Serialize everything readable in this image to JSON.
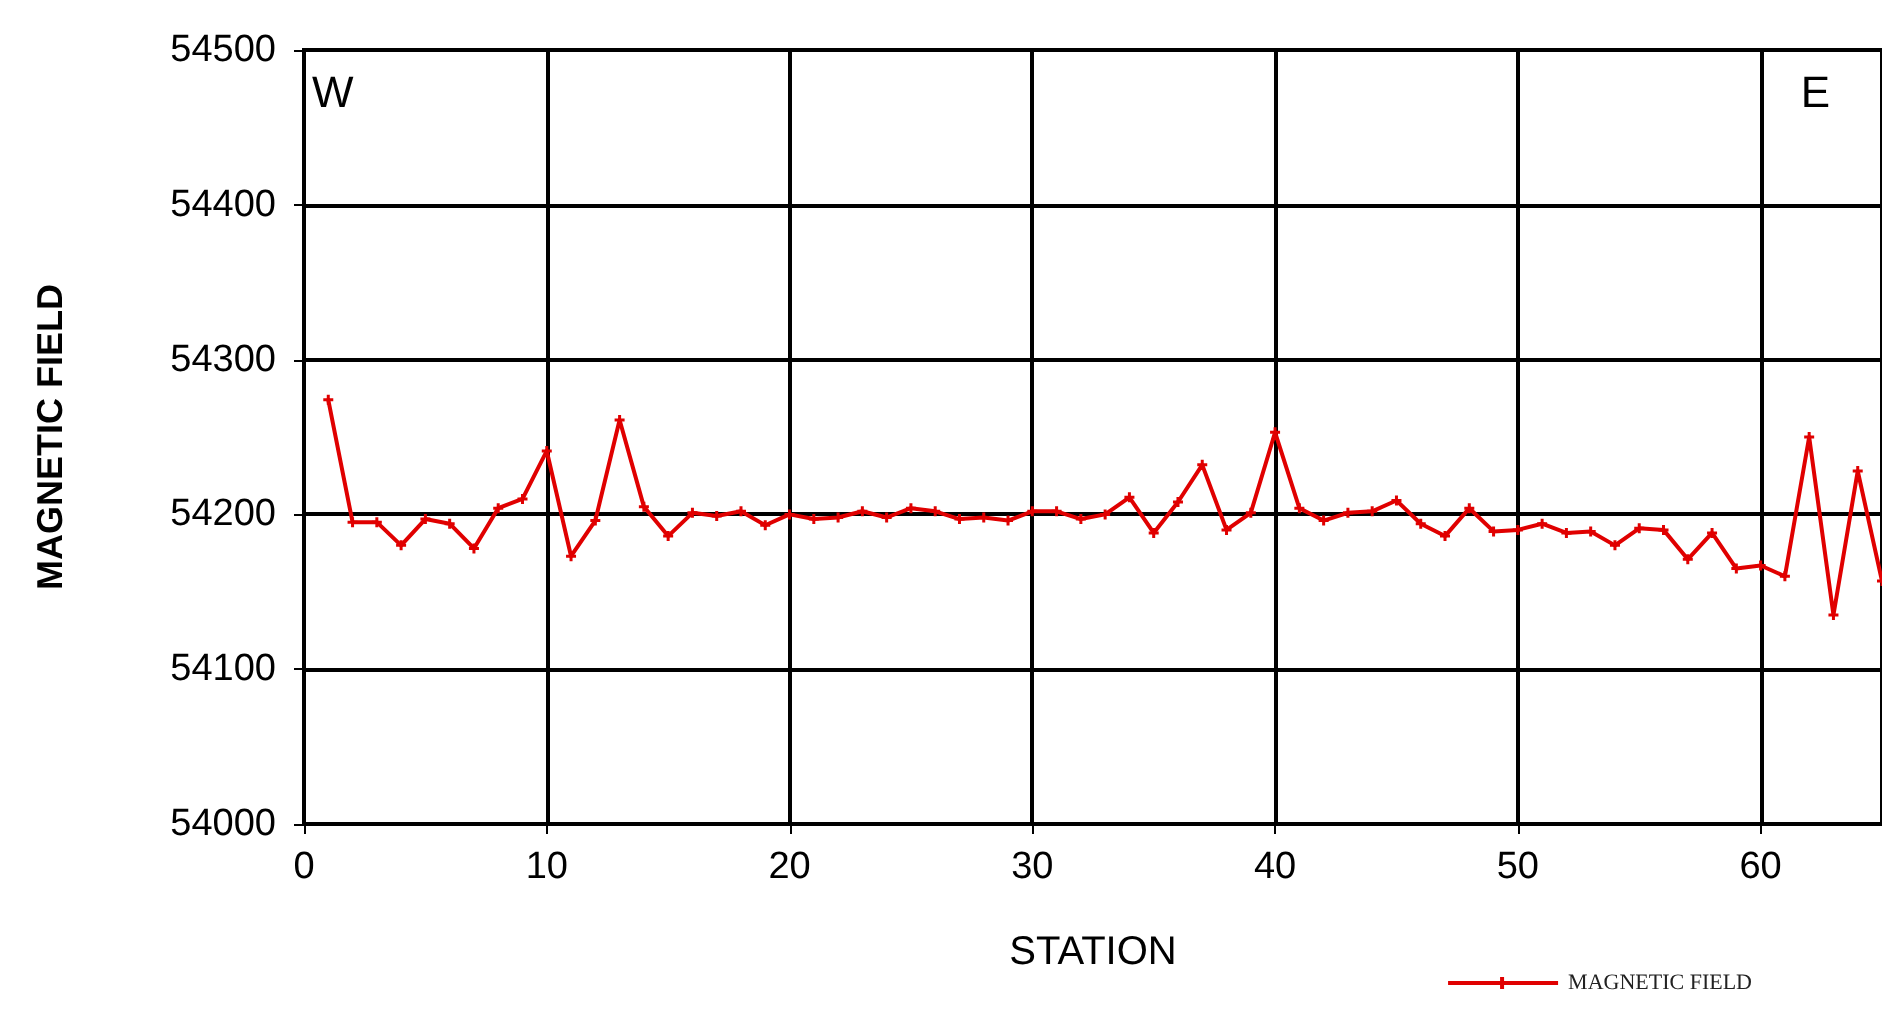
{
  "chart_data": {
    "type": "line",
    "xlabel": "STATION",
    "ylabel": "MAGNETIC FIELD",
    "annotations": [
      "W",
      "E"
    ],
    "x": [
      1,
      2,
      3,
      4,
      5,
      6,
      7,
      8,
      9,
      10,
      11,
      12,
      13,
      14,
      15,
      16,
      17,
      18,
      19,
      20,
      21,
      22,
      23,
      24,
      25,
      26,
      27,
      28,
      29,
      30,
      31,
      32,
      33,
      34,
      35,
      36,
      37,
      38,
      39,
      40,
      41,
      42,
      43,
      44,
      45,
      46,
      47,
      48,
      49,
      50,
      51,
      52,
      53,
      54,
      55,
      56,
      57,
      58,
      59,
      60,
      61,
      62,
      63,
      64,
      65
    ],
    "series": [
      {
        "name": "MAGNETIC FIELD",
        "color": "#e00000",
        "values": [
          54274,
          54195,
          54195,
          54180,
          54197,
          54194,
          54178,
          54204,
          54210,
          54241,
          54173,
          54196,
          54261,
          54205,
          54186,
          54201,
          54199,
          54202,
          54193,
          54200,
          54197,
          54198,
          54202,
          54198,
          54204,
          54202,
          54197,
          54198,
          54196,
          54202,
          54202,
          54197,
          54200,
          54211,
          54188,
          54208,
          54232,
          54190,
          54201,
          54253,
          54204,
          54196,
          54201,
          54202,
          54209,
          54194,
          54186,
          54204,
          54189,
          54190,
          54194,
          54188,
          54189,
          54180,
          54191,
          54190,
          54171,
          54188,
          54165,
          54167,
          54160,
          54250,
          54135,
          54228,
          54157
        ]
      }
    ],
    "xlim": [
      0,
      65
    ],
    "xticks": [
      0,
      10,
      20,
      30,
      40,
      50,
      60
    ],
    "ylim": [
      54000,
      54500
    ],
    "yticks": [
      54000,
      54100,
      54200,
      54300,
      54400,
      54500
    ],
    "grid": true,
    "legend": "bottom right",
    "marker": "cross",
    "line_style": "solid"
  }
}
